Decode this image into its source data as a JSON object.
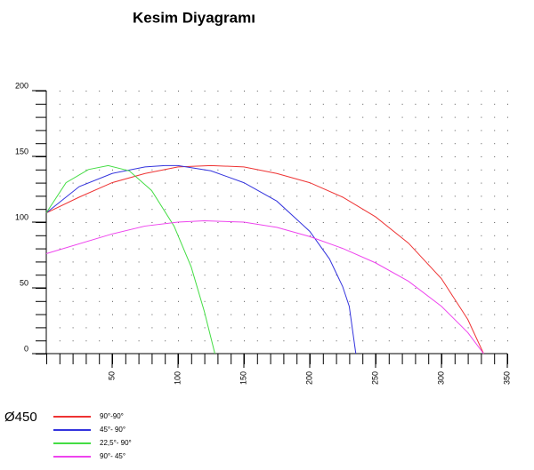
{
  "chart_data": {
    "type": "line",
    "title": "Kesim Diyagramı",
    "legend_title": "Ø450",
    "xlim": [
      0,
      350
    ],
    "xticks": [
      50,
      100,
      150,
      200,
      250,
      300,
      350
    ],
    "ylim": [
      0,
      200
    ],
    "yticks": [
      0,
      50,
      100,
      150,
      200
    ],
    "grid": true,
    "series": [
      {
        "name": "90°-90°",
        "color": "#ee3333",
        "x": [
          0,
          25,
          50,
          75,
          100,
          125,
          150,
          175,
          200,
          225,
          250,
          275,
          300,
          320,
          332
        ],
        "values": [
          107,
          119,
          130,
          137,
          142,
          143,
          142,
          137,
          130,
          119,
          104,
          84,
          57,
          26,
          0
        ]
      },
      {
        "name": "45°- 90°",
        "color": "#3333dd",
        "x": [
          0,
          25,
          50,
          75,
          90,
          100,
          125,
          150,
          175,
          200,
          215,
          225,
          230,
          235
        ],
        "values": [
          107,
          127,
          137,
          142,
          143,
          143,
          139,
          130,
          116,
          93,
          72,
          51,
          36,
          0
        ]
      },
      {
        "name": "22,5°- 90°",
        "color": "#44dd44",
        "x": [
          0,
          15,
          32,
          47,
          63,
          80,
          97,
          110,
          120,
          128
        ],
        "values": [
          107,
          130,
          140,
          143,
          139,
          124,
          97,
          66,
          32,
          0
        ]
      },
      {
        "name": "90°- 45°",
        "color": "#ee44ee",
        "x": [
          0,
          50,
          75,
          100,
          120,
          150,
          175,
          200,
          225,
          250,
          275,
          300,
          320,
          332
        ],
        "values": [
          76,
          91,
          97,
          100,
          101,
          100,
          96,
          89,
          80,
          69,
          55,
          36,
          16,
          0
        ]
      }
    ]
  }
}
